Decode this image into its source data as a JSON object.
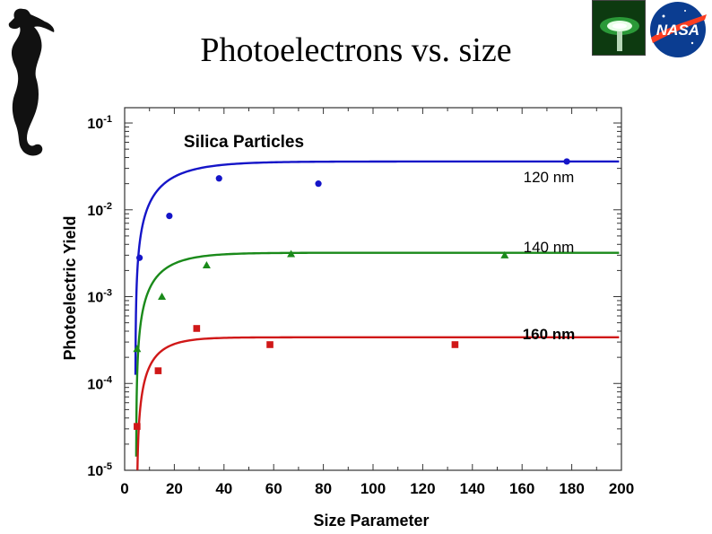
{
  "slide": {
    "title": "Photoelectrons vs. size"
  },
  "logos": {
    "lab": "lab-photo",
    "agency_text": "NASA"
  },
  "chart_data": {
    "type": "scatter",
    "title": "Silica Particles",
    "xlabel": "Size Parameter",
    "ylabel": "Photoelectric Yield",
    "xlim": [
      0,
      200
    ],
    "ylim": [
      1e-05,
      0.15
    ],
    "yscale": "log",
    "x_ticks": [
      "0",
      "20",
      "40",
      "60",
      "80",
      "100",
      "120",
      "140",
      "160",
      "180",
      "200"
    ],
    "y_ticks": [
      {
        "base": "10",
        "exp": "-1",
        "value": 0.1
      },
      {
        "base": "10",
        "exp": "-2",
        "value": 0.01
      },
      {
        "base": "10",
        "exp": "-3",
        "value": 0.001
      },
      {
        "base": "10",
        "exp": "-4",
        "value": 0.0001
      },
      {
        "base": "10",
        "exp": "-5",
        "value": 1e-05
      }
    ],
    "series": [
      {
        "name": "120 nm",
        "color": "#1515c8",
        "marker": "circle",
        "x": [
          6,
          18,
          38,
          78,
          178
        ],
        "y": [
          0.0028,
          0.0085,
          0.023,
          0.02,
          0.036
        ],
        "fit": {
          "ymax": 0.036,
          "x0": 4.3,
          "k": 0.07
        }
      },
      {
        "name": "140 nm",
        "color": "#1a8a1a",
        "marker": "triangle",
        "x": [
          5,
          15,
          33,
          67,
          153
        ],
        "y": [
          0.00025,
          0.001,
          0.0023,
          0.0031,
          0.003
        ],
        "fit": {
          "ymax": 0.0032,
          "x0": 4.6,
          "k": 0.09
        }
      },
      {
        "name": "160 nm",
        "color": "#d01818",
        "marker": "square",
        "x": [
          5,
          13.5,
          29,
          58.5,
          133
        ],
        "y": [
          3.2e-05,
          0.00014,
          0.00043,
          0.00028,
          0.00028
        ],
        "fit": {
          "ymax": 0.00034,
          "x0": 4.9,
          "k": 0.12
        }
      }
    ]
  }
}
